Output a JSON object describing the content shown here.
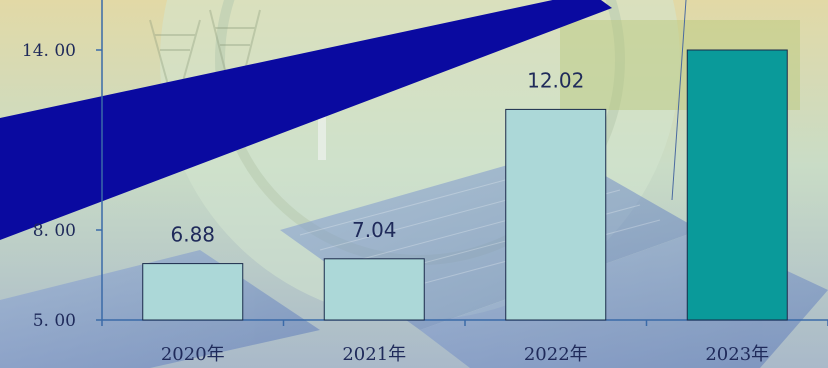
{
  "colors": {
    "bar_default": "#acd8d8",
    "bar_highlight": "#0a9a9a",
    "bar_border": "#1a2a4a",
    "axis": "#3a6aa8",
    "arrow": "#0a0aa0"
  },
  "chart_data": {
    "type": "bar",
    "categories": [
      "2020年",
      "2021年",
      "2022年",
      "2023年"
    ],
    "values": [
      6.88,
      7.04,
      12.02,
      14.0
    ],
    "data_labels": [
      "6.88",
      "7.04",
      "12.02",
      ""
    ],
    "highlight_index": 3,
    "ylim": [
      5.0,
      15.0
    ],
    "y_ticks": [
      {
        "value": 5.0,
        "label": "5. 00"
      },
      {
        "value": 8.0,
        "label": "8. 00"
      },
      {
        "value": 14.0,
        "label": "14. 00"
      }
    ],
    "grid": false,
    "annotation": {
      "type": "trend-arrow",
      "text": ""
    }
  }
}
